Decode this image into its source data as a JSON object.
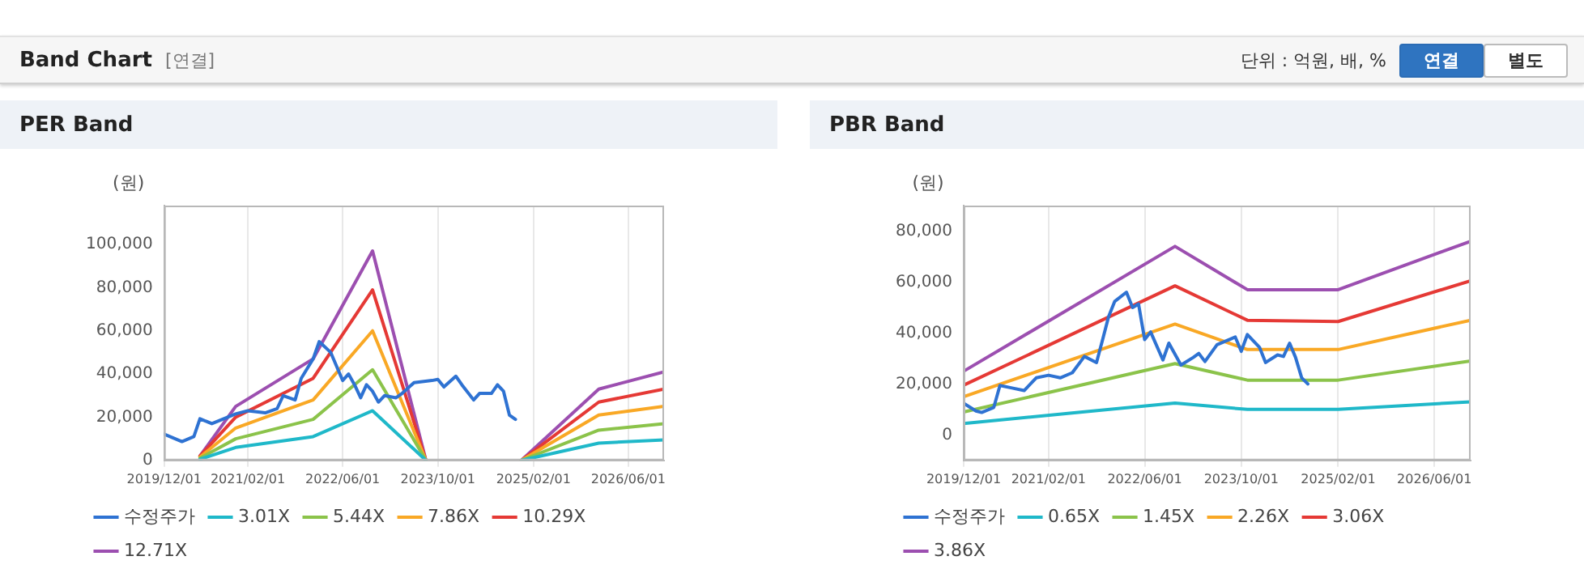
{
  "chart_data": [
    {
      "type": "other",
      "title": "Band Chart",
      "annotations": [
        "[연결]",
        "단위 : 억원, 배, %",
        "연결",
        "별도"
      ]
    },
    {
      "type": "line",
      "title": "PER Band",
      "ylabel": "(원)",
      "legend": "bottom",
      "grid": "x",
      "xlim": [
        "2019-12-01",
        "2026-12-01"
      ],
      "xticks": [
        {
          "value": "2019-12-01",
          "label": "2019/12/01"
        },
        {
          "value": "2021-02-01",
          "label": "2021/02/01"
        },
        {
          "value": "2022-06-01",
          "label": "2022/06/01"
        },
        {
          "value": "2023-10-01",
          "label": "2023/10/01"
        },
        {
          "value": "2025-02-01",
          "label": "2025/02/01"
        },
        {
          "value": "2026-06-01",
          "label": "2026/06/01"
        }
      ],
      "ylim": [
        0,
        118000
      ],
      "yticks": [
        0,
        {
          "value": 20000,
          "label": "20,000"
        },
        {
          "value": 40000,
          "label": "40,000"
        },
        {
          "value": 60000,
          "label": "60,000"
        },
        {
          "value": 80000,
          "label": "80,000"
        },
        {
          "value": 100000,
          "label": "100,000"
        }
      ],
      "x": [
        "2020-06",
        "2020-12",
        "2022-01",
        "2022-11",
        "2023-08",
        "2024-03",
        "2024-12",
        "2026-01",
        "2026-12"
      ],
      "series": [
        {
          "name": "수정주가",
          "color": "#2e72d2",
          "x": [
            "2019-12",
            "2020-03",
            "2020-05",
            "2020-06",
            "2020-08",
            "2020-12",
            "2021-02",
            "2021-05",
            "2021-07",
            "2021-08",
            "2021-10",
            "2021-11",
            "2022-01",
            "2022-02",
            "2022-04",
            "2022-06",
            "2022-07",
            "2022-08",
            "2022-09",
            "2022-10",
            "2022-11",
            "2022-12",
            "2023-01",
            "2023-03",
            "2023-04",
            "2023-06",
            "2023-09",
            "2023-10",
            "2023-11",
            "2024-01",
            "2024-02",
            "2024-04",
            "2024-05",
            "2024-07",
            "2024-08",
            "2024-09",
            "2024-10",
            "2024-11"
          ],
          "values": [
            12200,
            8700,
            11000,
            19300,
            17000,
            21500,
            23000,
            22000,
            24000,
            30000,
            28000,
            38000,
            47000,
            55000,
            50000,
            37000,
            40000,
            35000,
            29000,
            35000,
            32000,
            27000,
            30000,
            29000,
            31000,
            36000,
            37000,
            37500,
            34000,
            39000,
            35000,
            28000,
            31000,
            31000,
            35000,
            32000,
            21000,
            19000
          ]
        },
        {
          "name": "3.01X",
          "color": "#1fb8c9",
          "values": [
            500,
            6000,
            11000,
            23000,
            0,
            null,
            0,
            8000,
            9500
          ]
        },
        {
          "name": "5.44X",
          "color": "#8bc34a",
          "values": [
            1000,
            10000,
            19000,
            42000,
            0,
            null,
            0,
            14000,
            17000
          ]
        },
        {
          "name": "7.86X",
          "color": "#f9a825",
          "values": [
            1500,
            15000,
            28000,
            60000,
            0,
            null,
            0,
            21000,
            25000
          ]
        },
        {
          "name": "10.29X",
          "color": "#e53935",
          "values": [
            2000,
            20000,
            38000,
            79000,
            0,
            null,
            0,
            27000,
            33000
          ]
        },
        {
          "name": "12.71X",
          "color": "#9c4fb0",
          "values": [
            2000,
            25000,
            47000,
            97000,
            0,
            null,
            0,
            33000,
            41000
          ]
        }
      ]
    },
    {
      "type": "line",
      "title": "PBR Band",
      "ylabel": "(원)",
      "legend": "bottom",
      "grid": "x",
      "xlim": [
        "2019-12-01",
        "2026-12-01"
      ],
      "xticks": [
        {
          "value": "2019-12-01",
          "label": "2019/12/01"
        },
        {
          "value": "2021-02-01",
          "label": "2021/02/01"
        },
        {
          "value": "2022-06-01",
          "label": "2022/06/01"
        },
        {
          "value": "2023-10-01",
          "label": "2023/10/01"
        },
        {
          "value": "2025-02-01",
          "label": "2025/02/01"
        },
        {
          "value": "2026-06-01",
          "label": "2026/06/01"
        }
      ],
      "ylim": [
        -10000,
        90000
      ],
      "yticks": [
        0,
        {
          "value": 20000,
          "label": "20,000"
        },
        {
          "value": 40000,
          "label": "40,000"
        },
        {
          "value": 60000,
          "label": "60,000"
        },
        {
          "value": 80000,
          "label": "80,000"
        }
      ],
      "x": [
        "2019-12",
        "2022-11",
        "2023-11",
        "2025-02",
        "2026-12"
      ],
      "series": [
        {
          "name": "수정주가",
          "color": "#2e72d2",
          "x": [
            "2019-12",
            "2020-02",
            "2020-03",
            "2020-05",
            "2020-06",
            "2020-08",
            "2020-10",
            "2020-12",
            "2021-02",
            "2021-04",
            "2021-06",
            "2021-08",
            "2021-10",
            "2021-11",
            "2021-12",
            "2022-01",
            "2022-03",
            "2022-04",
            "2022-05",
            "2022-06",
            "2022-07",
            "2022-09",
            "2022-10",
            "2022-12",
            "2023-02",
            "2023-03",
            "2023-04",
            "2023-06",
            "2023-08",
            "2023-09",
            "2023-10",
            "2023-11",
            "2024-01",
            "2024-02",
            "2024-04",
            "2024-05",
            "2024-06",
            "2024-07",
            "2024-08",
            "2024-09"
          ],
          "values": [
            12400,
            9400,
            8800,
            10800,
            19400,
            18400,
            17400,
            22400,
            23400,
            22400,
            24400,
            30800,
            28400,
            37400,
            46400,
            52400,
            56000,
            50000,
            51400,
            37400,
            40400,
            29400,
            36000,
            27400,
            30400,
            32000,
            28800,
            35400,
            37400,
            38400,
            32800,
            39400,
            34400,
            28400,
            31400,
            30800,
            36000,
            30400,
            22400,
            20000
          ]
        },
        {
          "name": "0.65X",
          "color": "#1fb8c9",
          "values": [
            4500,
            12500,
            10000,
            10000,
            13000
          ]
        },
        {
          "name": "1.45X",
          "color": "#8bc34a",
          "values": [
            9000,
            28000,
            21500,
            21500,
            29000
          ]
        },
        {
          "name": "2.26X",
          "color": "#f9a825",
          "values": [
            15000,
            43500,
            33500,
            33500,
            45000
          ]
        },
        {
          "name": "3.06X",
          "color": "#e53935",
          "values": [
            19500,
            58500,
            45000,
            44500,
            60500
          ]
        },
        {
          "name": "3.86X",
          "color": "#9c4fb0",
          "values": [
            25000,
            74000,
            57000,
            57000,
            76000
          ]
        }
      ]
    }
  ]
}
